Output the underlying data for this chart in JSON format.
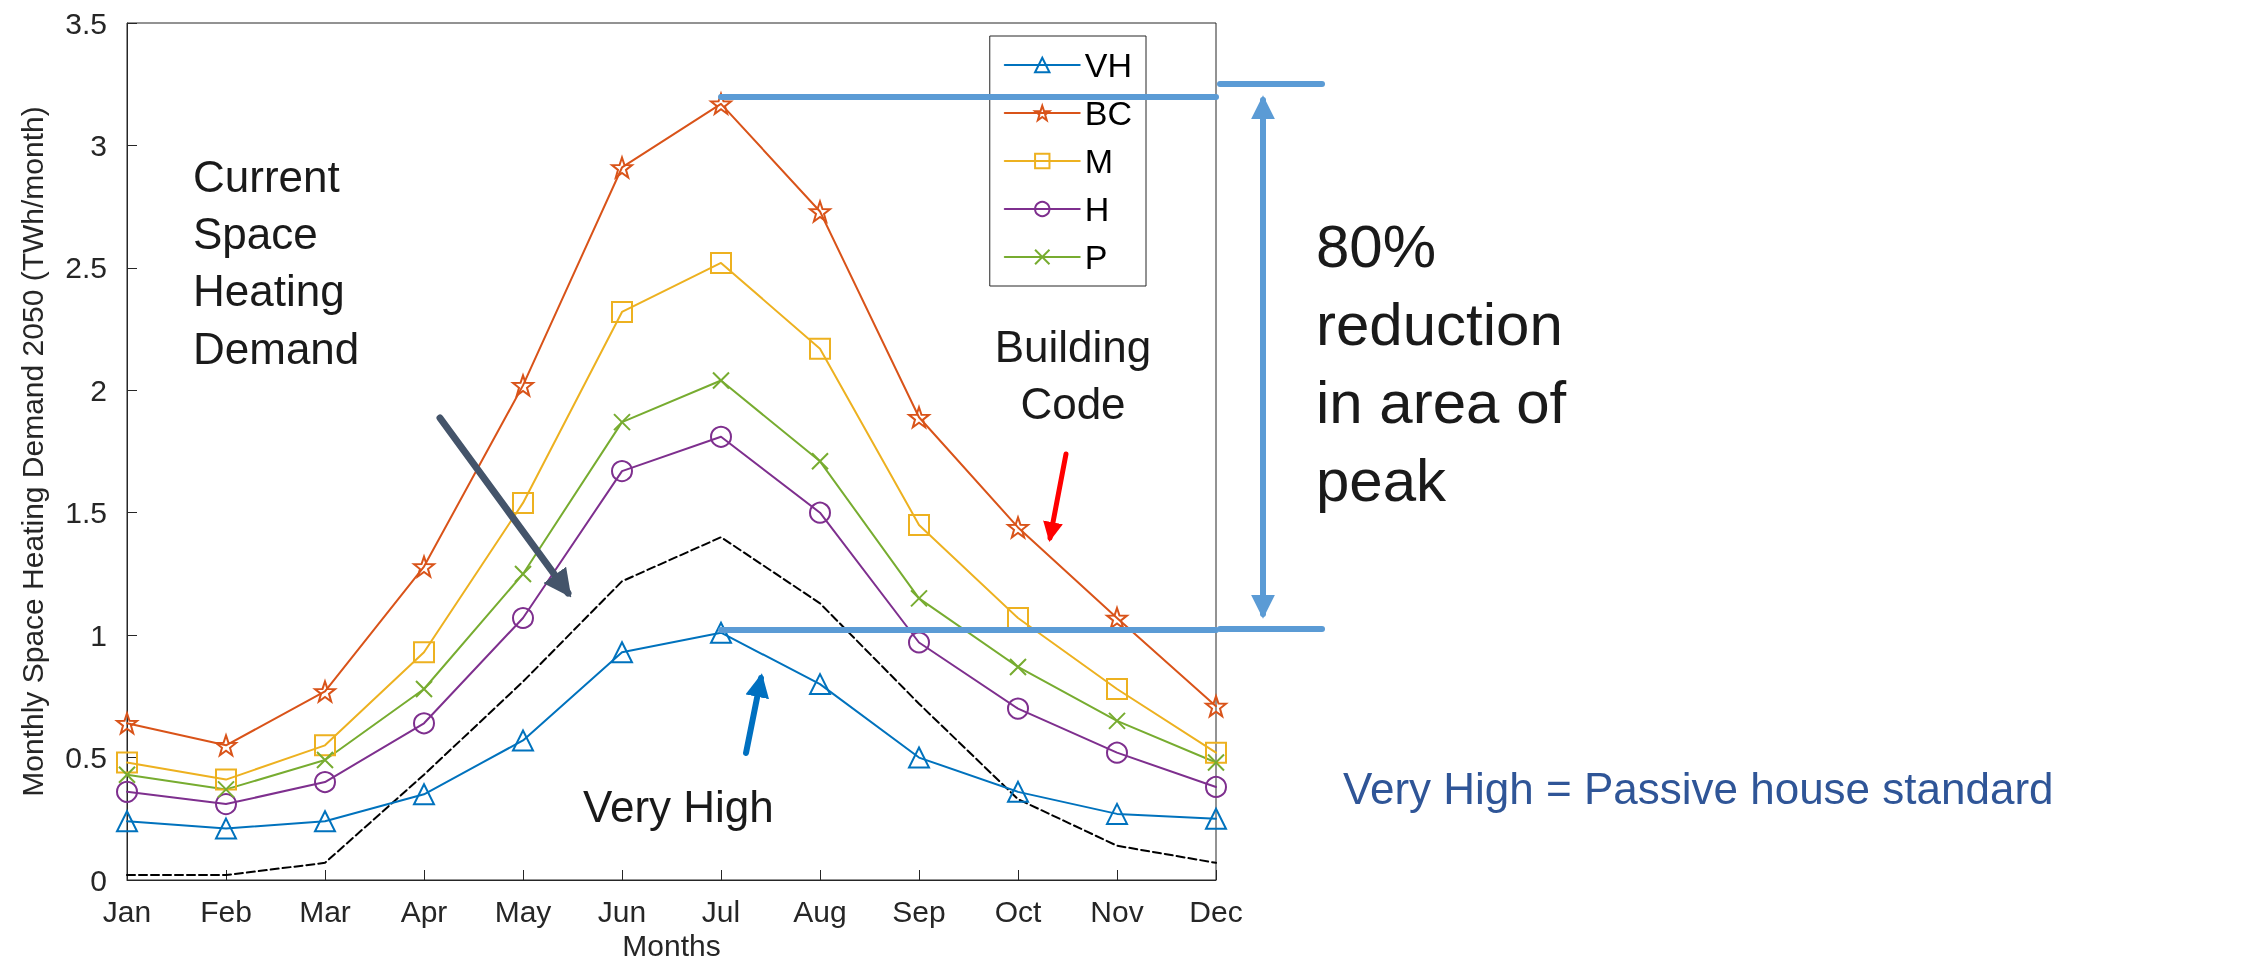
{
  "chart_data": {
    "type": "line",
    "xlabel": "Months",
    "ylabel": "Monthly Space Heating Demand 2050 (TWh/month)",
    "categories": [
      "Jan",
      "Feb",
      "Mar",
      "Apr",
      "May",
      "Jun",
      "Jul",
      "Aug",
      "Sep",
      "Oct",
      "Nov",
      "Dec"
    ],
    "ylim": [
      0,
      3.5
    ],
    "yticks": [
      0,
      0.5,
      1,
      1.5,
      2,
      2.5,
      3,
      3.5
    ],
    "grid": false,
    "legend": "top right",
    "line_style": "solid",
    "series": [
      {
        "name": "VH",
        "color": "#0072bd",
        "marker": "triangle",
        "values": [
          0.24,
          0.21,
          0.24,
          0.35,
          0.57,
          0.93,
          1.01,
          0.8,
          0.5,
          0.36,
          0.27,
          0.25
        ]
      },
      {
        "name": "BC",
        "color": "#d95319",
        "marker": "star",
        "values": [
          0.64,
          0.55,
          0.77,
          1.28,
          2.02,
          2.91,
          3.17,
          2.73,
          1.89,
          1.44,
          1.07,
          0.71
        ]
      },
      {
        "name": "M",
        "color": "#edb120",
        "marker": "square",
        "values": [
          0.48,
          0.41,
          0.55,
          0.93,
          1.54,
          2.32,
          2.52,
          2.17,
          1.45,
          1.07,
          0.78,
          0.52
        ]
      },
      {
        "name": "H",
        "color": "#7e2f8e",
        "marker": "circle",
        "values": [
          0.36,
          0.31,
          0.4,
          0.64,
          1.07,
          1.67,
          1.81,
          1.5,
          0.97,
          0.7,
          0.52,
          0.38
        ]
      },
      {
        "name": "P",
        "color": "#77ac30",
        "marker": "cross",
        "values": [
          0.43,
          0.37,
          0.49,
          0.78,
          1.25,
          1.87,
          2.04,
          1.71,
          1.15,
          0.87,
          0.65,
          0.48
        ]
      },
      {
        "color": "#000000",
        "marker": "none",
        "line_style": "dashed",
        "values": [
          0.02,
          0.02,
          0.07,
          0.43,
          0.81,
          1.22,
          1.4,
          1.13,
          0.72,
          0.33,
          0.14,
          0.07
        ]
      }
    ],
    "ref_lines": [
      {
        "axis": "y",
        "value": 3.2,
        "color": "#5b9bd5"
      },
      {
        "axis": "y",
        "value": 1.02,
        "color": "#5b9bd5"
      }
    ],
    "annotations": [
      "Current Space Heating Demand",
      "Building Code",
      "Very High",
      "80% reduction in area of peak",
      "Very High = Passive house standard"
    ]
  }
}
